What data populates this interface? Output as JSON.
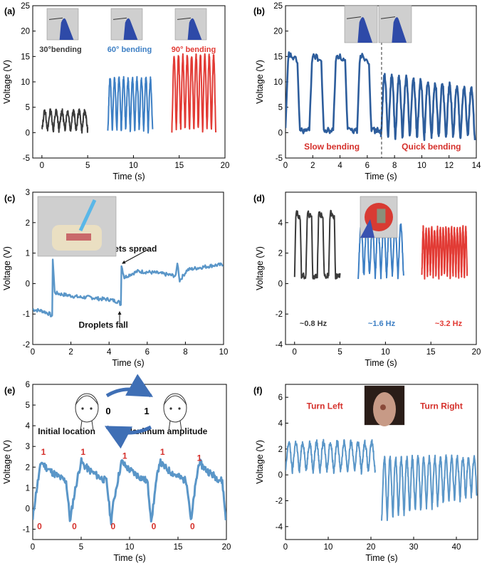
{
  "colors": {
    "black": "#3a3a3a",
    "blue": "#3d7fc4",
    "red": "#e23b35",
    "steel": "#5a96c8",
    "navy": "#2d5d9c",
    "annot_red": "#d5302b",
    "arrow": "#3f6fb5"
  },
  "chart_data": [
    {
      "panel": "a",
      "panel_label": "(a)",
      "type": "line",
      "xlabel": "Time (s)",
      "ylabel": "Voltage (V)",
      "xlim": [
        -1,
        20
      ],
      "ylim": [
        -5,
        25
      ],
      "xticks": [
        0,
        5,
        10,
        15,
        20
      ],
      "yticks": [
        -5,
        0,
        5,
        10,
        15,
        20,
        25
      ],
      "photos": [
        "hand-photo",
        "hand-photo",
        "hand-photo"
      ],
      "series": [
        {
          "name": "30°bending",
          "color": "#3a3a3a",
          "t_start": 0,
          "t_end": 5,
          "peaks": 8,
          "low": 0.5,
          "high": 4.2,
          "shape": "pulse"
        },
        {
          "name": "60° bending",
          "color": "#3d7fc4",
          "t_start": 7.2,
          "t_end": 12.1,
          "peaks": 10,
          "low": 0.5,
          "high": 10.5,
          "shape": "pulse"
        },
        {
          "name": "90° bending",
          "color": "#e23b35",
          "t_start": 14.2,
          "t_end": 19,
          "peaks": 10,
          "low": 0.5,
          "high": 15,
          "shape": "pulse"
        }
      ]
    },
    {
      "panel": "b",
      "panel_label": "(b)",
      "type": "line",
      "xlabel": "Time (s)",
      "ylabel": "Voltage (V)",
      "xlim": [
        0,
        14
      ],
      "ylim": [
        -5,
        25
      ],
      "xticks": [
        0,
        2,
        4,
        6,
        8,
        10,
        12,
        14
      ],
      "yticks": [
        -5,
        0,
        5,
        10,
        15,
        20,
        25
      ],
      "divider_x": 7.05,
      "photos": [
        "hand-photo",
        "hand-photo"
      ],
      "annotations": [
        {
          "text": "Slow bending",
          "x": 3.4,
          "y": -3.3
        },
        {
          "text": "Quick bending",
          "x": 10.7,
          "y": -3.3
        }
      ],
      "series": [
        {
          "name": "slow",
          "color": "#2d5d9c",
          "t_start": 0,
          "t_end": 7,
          "peaks": 4,
          "low": 0.4,
          "high": 15.5,
          "shape": "square"
        },
        {
          "name": "quick",
          "color": "#2d5d9c",
          "t_start": 7,
          "t_end": 13.9,
          "peaks": 13,
          "low": -1.0,
          "high": 11.5,
          "high_end": 8.5,
          "shape": "pulse"
        }
      ]
    },
    {
      "panel": "c",
      "panel_label": "(c)",
      "type": "line",
      "xlabel": "Time (s)",
      "ylabel": "Voltage (V)",
      "xlim": [
        0,
        10
      ],
      "ylim": [
        -2,
        3
      ],
      "xticks": [
        0,
        2,
        4,
        6,
        8,
        10
      ],
      "yticks": [
        -2,
        -1,
        0,
        1,
        2,
        3
      ],
      "photos": [
        "pipette-photo"
      ],
      "annotations": [
        {
          "text": "Droplets spread",
          "x": 4.8,
          "y": 1.05
        },
        {
          "text": "Droplets fall",
          "x": 3.7,
          "y": -1.45
        }
      ],
      "trace": [
        [
          0,
          -0.85
        ],
        [
          0.5,
          -0.9
        ],
        [
          0.9,
          -1.0
        ],
        [
          1.02,
          -1.1
        ],
        [
          1.05,
          0.8
        ],
        [
          1.15,
          -0.3
        ],
        [
          1.5,
          -0.35
        ],
        [
          2,
          -0.4
        ],
        [
          2.5,
          -0.45
        ],
        [
          3,
          -0.45
        ],
        [
          3.5,
          -0.5
        ],
        [
          4,
          -0.52
        ],
        [
          4.5,
          -0.6
        ],
        [
          4.62,
          -0.7
        ],
        [
          4.65,
          0.6
        ],
        [
          4.8,
          0.2
        ],
        [
          5.1,
          0.3
        ],
        [
          5.5,
          0.4
        ],
        [
          6,
          0.38
        ],
        [
          6.5,
          0.35
        ],
        [
          7,
          0.3
        ],
        [
          7.5,
          0.25
        ],
        [
          7.58,
          0.7
        ],
        [
          7.7,
          0.1
        ],
        [
          8.1,
          0.45
        ],
        [
          8.5,
          0.5
        ],
        [
          9,
          0.55
        ],
        [
          9.5,
          0.6
        ],
        [
          10,
          0.62
        ]
      ],
      "series": [
        {
          "name": "droplet",
          "color": "#5a96c8"
        }
      ]
    },
    {
      "panel": "d",
      "panel_label": "(d)",
      "type": "line",
      "xlabel": "Time (s)",
      "ylabel": "Voltage (V)",
      "xlim": [
        -1,
        20
      ],
      "ylim": [
        -4,
        6
      ],
      "xticks": [
        0,
        5,
        10,
        15,
        20
      ],
      "yticks": [
        -4,
        -2,
        0,
        2,
        4
      ],
      "photos": [
        "sensor-photo"
      ],
      "series": [
        {
          "name": "~0.8 Hz",
          "color": "#3a3a3a",
          "t_start": 0,
          "t_end": 5,
          "peaks": 4,
          "low": 0.5,
          "high": 4.7,
          "shape": "square"
        },
        {
          "name": "~1.6 Hz",
          "color": "#3d7fc4",
          "t_start": 7,
          "t_end": 12,
          "peaks": 8,
          "low": 0.5,
          "high": 3.8,
          "shape": "pulse"
        },
        {
          "name": "~3.2 Hz",
          "color": "#e23b35",
          "t_start": 14,
          "t_end": 19,
          "peaks": 16,
          "low": 0.5,
          "high": 3.6,
          "shape": "pulse"
        }
      ]
    },
    {
      "panel": "e",
      "panel_label": "(e)",
      "type": "line",
      "xlabel": "Time (s)",
      "ylabel": "Voltage (V)",
      "xlim": [
        0,
        20
      ],
      "ylim": [
        -1.5,
        6
      ],
      "xticks": [
        0,
        5,
        10,
        15,
        20
      ],
      "yticks": [
        -1,
        0,
        1,
        2,
        3,
        4,
        5,
        6
      ],
      "state_labels": [
        "0",
        "1"
      ],
      "annotations": [
        {
          "text": "Initial location",
          "x": 3.5,
          "y": 3.6
        },
        {
          "text": "Maximum amplitude",
          "x": 13.8,
          "y": 3.6
        }
      ],
      "peak_marks": [
        {
          "text": "1",
          "x": 1.1,
          "y": 2.6
        },
        {
          "text": "1",
          "x": 5.2,
          "y": 2.6
        },
        {
          "text": "1",
          "x": 9.5,
          "y": 2.4
        },
        {
          "text": "1",
          "x": 13.4,
          "y": 2.6
        },
        {
          "text": "1",
          "x": 17.2,
          "y": 2.3
        }
      ],
      "valley_marks": [
        {
          "text": "0",
          "x": 0.7,
          "y": -1.0
        },
        {
          "text": "0",
          "x": 4.3,
          "y": -1.0
        },
        {
          "text": "0",
          "x": 8.3,
          "y": -1.0
        },
        {
          "text": "0",
          "x": 12.5,
          "y": -1.0
        },
        {
          "text": "0",
          "x": 16.5,
          "y": -1.0
        }
      ],
      "series": [
        {
          "name": "neck",
          "color": "#5a96c8",
          "peak_times": [
            0.9,
            5.0,
            9.2,
            13.1,
            17.2
          ],
          "valley_times": [
            0,
            3.9,
            8.1,
            12.3,
            16.4,
            20
          ],
          "peak_v": 2.3,
          "valley_v": -0.6
        }
      ]
    },
    {
      "panel": "f",
      "panel_label": "(f)",
      "type": "line",
      "xlabel": "Time (s)",
      "ylabel": "Voltage (V)",
      "xlim": [
        0,
        45
      ],
      "ylim": [
        -5,
        7
      ],
      "xticks": [
        0,
        10,
        20,
        30,
        40
      ],
      "yticks": [
        -4,
        -2,
        0,
        2,
        4,
        6
      ],
      "photos": [
        "neck-photo"
      ],
      "annotations": [
        {
          "text": "Turn Left",
          "x": 9.2,
          "y": 5.1
        },
        {
          "text": "Turn Right",
          "x": 36.5,
          "y": 5.1
        }
      ],
      "series": [
        {
          "name": "left",
          "color": "#5a96c8",
          "t_start": 0,
          "t_end": 21,
          "peaks": 13,
          "low": 0.3,
          "high": 2.5,
          "shape": "pulse"
        },
        {
          "name": "right",
          "color": "#5a96c8",
          "t_start": 22.5,
          "t_end": 44.8,
          "peaks": 17,
          "low": -3.5,
          "high": 1.3,
          "low_end": -1.5,
          "shape": "pulse"
        }
      ]
    }
  ]
}
